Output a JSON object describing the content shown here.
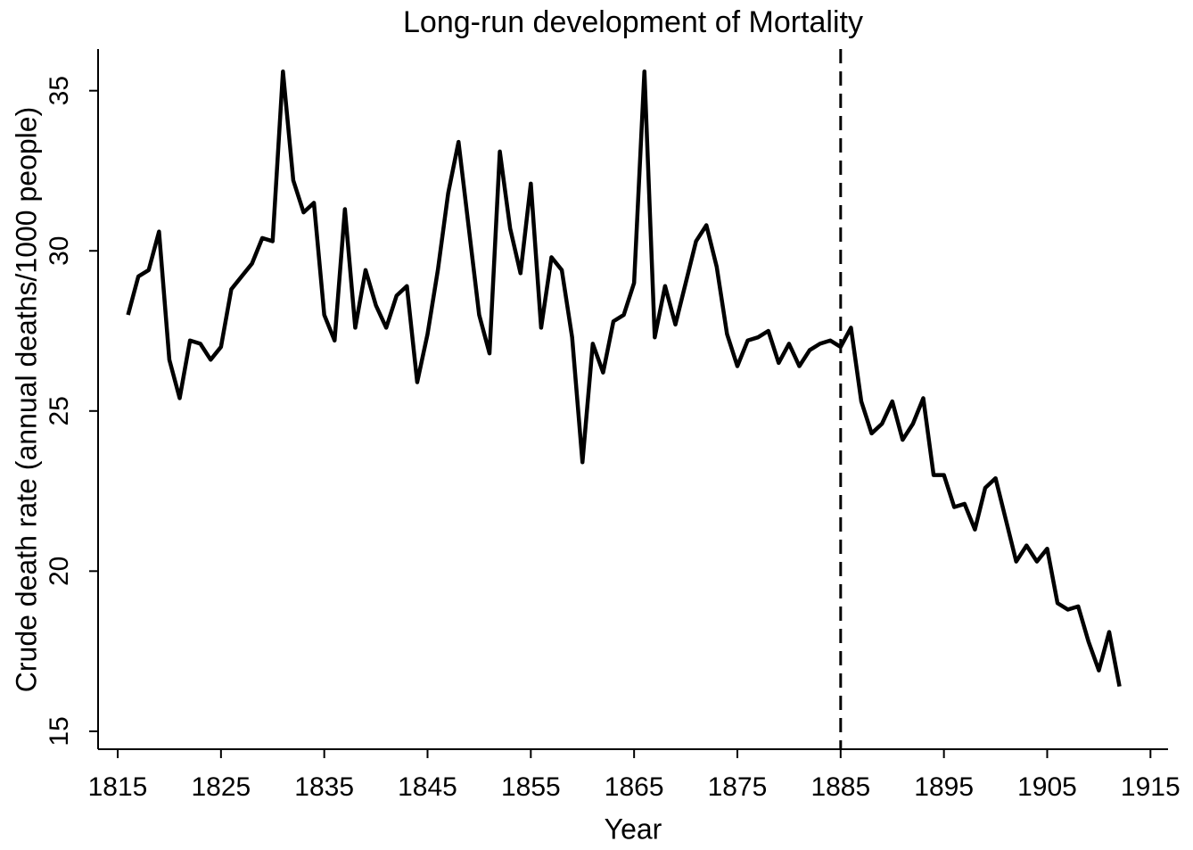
{
  "chart_data": {
    "type": "line",
    "title": "Long-run development of Mortality",
    "x_label": "Year",
    "y_label": "Crude death rate (annual deaths/1000 people)",
    "x": [
      1816,
      1817,
      1818,
      1819,
      1820,
      1821,
      1822,
      1823,
      1824,
      1825,
      1826,
      1827,
      1828,
      1829,
      1830,
      1831,
      1832,
      1833,
      1834,
      1835,
      1836,
      1837,
      1838,
      1839,
      1840,
      1841,
      1842,
      1843,
      1844,
      1845,
      1846,
      1847,
      1848,
      1849,
      1850,
      1851,
      1852,
      1853,
      1854,
      1855,
      1856,
      1857,
      1858,
      1859,
      1860,
      1861,
      1862,
      1863,
      1864,
      1865,
      1866,
      1867,
      1868,
      1869,
      1870,
      1871,
      1872,
      1873,
      1874,
      1875,
      1876,
      1877,
      1878,
      1879,
      1880,
      1881,
      1882,
      1883,
      1884,
      1885,
      1886,
      1887,
      1888,
      1889,
      1890,
      1891,
      1892,
      1893,
      1894,
      1895,
      1896,
      1897,
      1898,
      1899,
      1900,
      1901,
      1902,
      1903,
      1904,
      1905,
      1906,
      1907,
      1908,
      1909,
      1910,
      1911,
      1912
    ],
    "series": [
      {
        "color": "#000000",
        "values": [
          28.0,
          29.2,
          29.4,
          30.6,
          26.6,
          25.4,
          27.2,
          27.1,
          26.6,
          27.0,
          28.8,
          29.2,
          29.6,
          30.4,
          30.3,
          35.6,
          32.2,
          31.2,
          31.5,
          28.0,
          27.2,
          31.3,
          27.6,
          29.4,
          28.3,
          27.6,
          28.6,
          28.9,
          25.9,
          27.4,
          29.4,
          31.8,
          33.4,
          30.7,
          28.0,
          26.8,
          33.1,
          30.7,
          29.3,
          32.1,
          27.6,
          29.8,
          29.4,
          27.3,
          23.4,
          27.1,
          26.2,
          27.8,
          28.0,
          29.0,
          35.6,
          27.3,
          28.9,
          27.7,
          29.0,
          30.3,
          30.8,
          29.5,
          27.4,
          26.4,
          27.2,
          27.3,
          27.5,
          26.5,
          27.1,
          26.4,
          26.9,
          27.1,
          27.2,
          27.0,
          27.6,
          25.3,
          24.3,
          24.6,
          25.3,
          24.1,
          24.6,
          25.4,
          23.0,
          23.0,
          22.0,
          22.1,
          21.3,
          22.6,
          22.9,
          21.6,
          20.3,
          20.8,
          20.3,
          20.7,
          19.0,
          18.8,
          18.9,
          17.8,
          16.9,
          18.1,
          16.4
        ]
      }
    ],
    "vline": 1885,
    "xlim": [
      1813.1,
      1916.7
    ],
    "ylim": [
      14.44,
      36.3
    ],
    "xticks": [
      1815,
      1825,
      1835,
      1845,
      1855,
      1865,
      1875,
      1885,
      1895,
      1905,
      1915
    ],
    "yticks": [
      15,
      20,
      25,
      30,
      35
    ],
    "grid": false
  }
}
